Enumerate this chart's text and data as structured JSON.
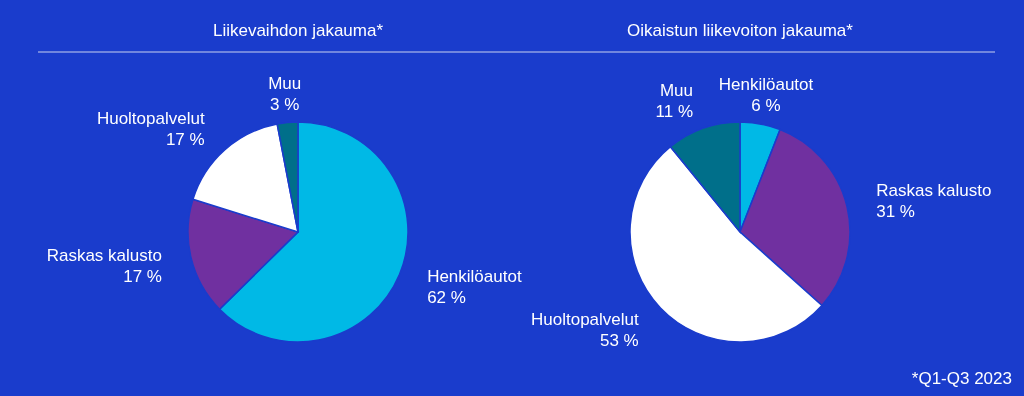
{
  "chart_data": [
    {
      "type": "pie",
      "title": "Liikevaihdon jakauma*",
      "categories": [
        "Henkilöautot",
        "Raskas kalusto",
        "Huoltopalvelut",
        "Muu"
      ],
      "values": [
        62,
        17,
        17,
        3
      ],
      "value_labels": [
        "62 %",
        "17 %",
        "17 %",
        "3 %"
      ],
      "colors": [
        "#00b9e6",
        "#7030a0",
        "#ffffff",
        "#006f8a"
      ]
    },
    {
      "type": "pie",
      "title": "Oikaistun liikevoiton jakauma*",
      "categories": [
        "Henkilöautot",
        "Raskas kalusto",
        "Huoltopalvelut",
        "Muu"
      ],
      "values": [
        6,
        31,
        53,
        11
      ],
      "value_labels": [
        "6 %",
        "31 %",
        "53 %",
        "11 %"
      ],
      "colors": [
        "#00b9e6",
        "#7030a0",
        "#ffffff",
        "#006f8a"
      ],
      "annotations": [
        "*Q1-Q3 2023"
      ]
    }
  ]
}
